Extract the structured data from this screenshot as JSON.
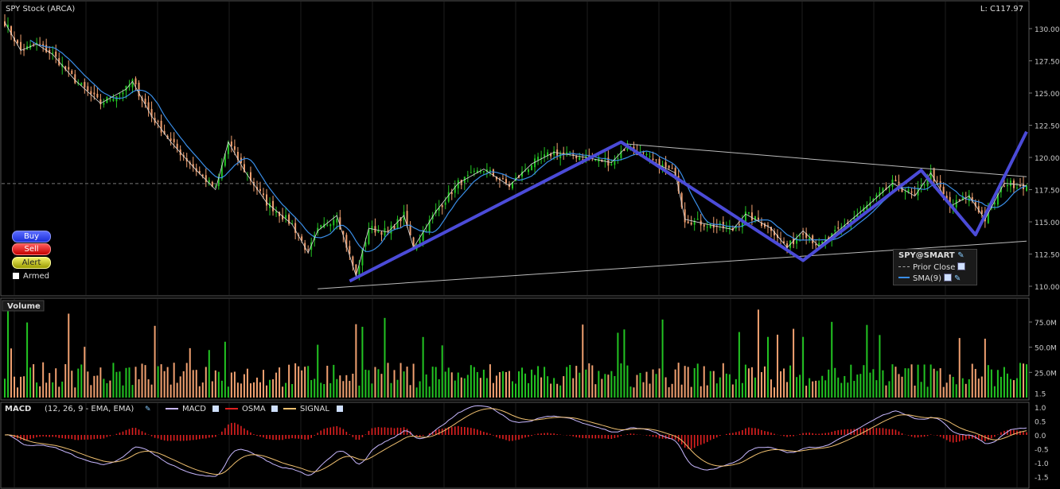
{
  "price_pane": {
    "title": "SPY Stock (ARCA)",
    "last_label": "L: C117.97",
    "yticks": [
      "130.00",
      "127.50",
      "125.00",
      "122.50",
      "120.00",
      "117.50",
      "115.00",
      "112.50",
      "110.00"
    ],
    "prior_close_line": 117.97
  },
  "trade_buttons": {
    "buy": "Buy",
    "sell": "Sell",
    "alert": "Alert",
    "armed": "Armed"
  },
  "legend": {
    "title": "SPY@SMART",
    "prior_close": "Prior Close",
    "sma": "SMA(9)"
  },
  "volume_pane": {
    "title": "Volume",
    "yticks": [
      "75.0M",
      "50.0M",
      "25.0M"
    ]
  },
  "macd_pane": {
    "title": "MACD",
    "params": "(12, 26, 9 - EMA, EMA)",
    "series_labels": {
      "macd": "MACD",
      "osma": "OSMA",
      "signal": "SIGNAL"
    },
    "yticks": [
      "1.5",
      "1.0",
      "0.5",
      "0.0",
      "-0.5",
      "-1.0",
      "-1.5"
    ]
  },
  "colors": {
    "up": "#22c422",
    "down": "#f0a070",
    "sma": "#3a8ee8",
    "zigzag": "#4b4bd8",
    "thin": "#dddddd",
    "macd": "#c8b8ff",
    "signal": "#f0c070",
    "osma": "#e02020"
  },
  "chart_data": {
    "type": "candlestick",
    "ylim": [
      109.5,
      131.5
    ],
    "close_anchors": [
      [
        0,
        130.5
      ],
      [
        5,
        128.3
      ],
      [
        10,
        128.8
      ],
      [
        15,
        128.0
      ],
      [
        22,
        126.0
      ],
      [
        30,
        124.2
      ],
      [
        38,
        125.3
      ],
      [
        40,
        125.9
      ],
      [
        46,
        123.2
      ],
      [
        52,
        121.2
      ],
      [
        60,
        119.0
      ],
      [
        66,
        117.5
      ],
      [
        70,
        121.2
      ],
      [
        75,
        119.0
      ],
      [
        82,
        116.5
      ],
      [
        90,
        114.8
      ],
      [
        95,
        112.6
      ],
      [
        98,
        114.3
      ],
      [
        104,
        115.5
      ],
      [
        110,
        110.8
      ],
      [
        114,
        114.5
      ],
      [
        120,
        114.2
      ],
      [
        125,
        115.5
      ],
      [
        128,
        113.0
      ],
      [
        135,
        115.8
      ],
      [
        142,
        118.0
      ],
      [
        150,
        119.1
      ],
      [
        158,
        117.8
      ],
      [
        165,
        119.5
      ],
      [
        172,
        120.4
      ],
      [
        182,
        120.0
      ],
      [
        190,
        119.6
      ],
      [
        195,
        120.9
      ],
      [
        205,
        119.4
      ],
      [
        210,
        118.8
      ],
      [
        213,
        115.2
      ],
      [
        220,
        114.8
      ],
      [
        228,
        114.4
      ],
      [
        232,
        115.6
      ],
      [
        240,
        114.5
      ],
      [
        245,
        113.0
      ],
      [
        250,
        114.3
      ],
      [
        255,
        113.1
      ],
      [
        262,
        114.5
      ],
      [
        270,
        116.2
      ],
      [
        278,
        118.0
      ],
      [
        285,
        117.0
      ],
      [
        290,
        118.8
      ],
      [
        296,
        116.2
      ],
      [
        302,
        117.0
      ],
      [
        307,
        115.2
      ],
      [
        313,
        118.0
      ],
      [
        320,
        117.8
      ]
    ],
    "zigzag": [
      [
        108,
        110.4
      ],
      [
        193,
        121.2
      ],
      [
        250,
        112.0
      ],
      [
        287,
        119.0
      ],
      [
        304,
        114.0
      ],
      [
        320,
        122.0
      ]
    ],
    "trend_upper": [
      [
        192,
        121.1
      ],
      [
        320,
        118.5
      ]
    ],
    "trend_lower": [
      [
        98,
        109.8
      ],
      [
        320,
        113.5
      ]
    ],
    "volume_ylim": [
      0,
      95
    ],
    "macd_ylim": [
      -1.8,
      1.6
    ]
  }
}
